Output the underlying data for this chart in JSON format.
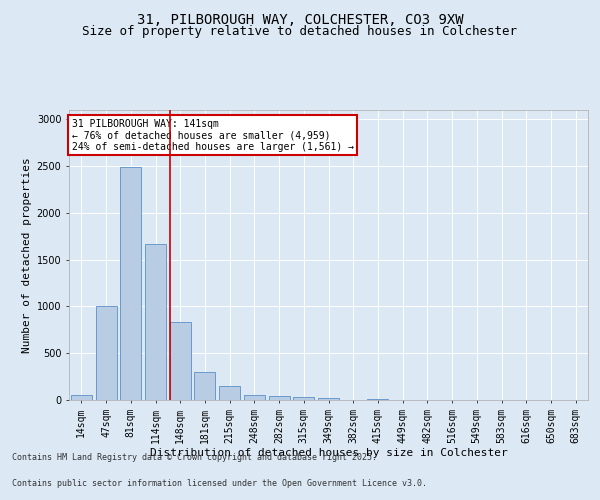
{
  "title_line1": "31, PILBOROUGH WAY, COLCHESTER, CO3 9XW",
  "title_line2": "Size of property relative to detached houses in Colchester",
  "xlabel": "Distribution of detached houses by size in Colchester",
  "ylabel": "Number of detached properties",
  "annotation_line1": "31 PILBOROUGH WAY: 141sqm",
  "annotation_line2": "← 76% of detached houses are smaller (4,959)",
  "annotation_line3": "24% of semi-detached houses are larger (1,561) →",
  "categories": [
    "14sqm",
    "47sqm",
    "81sqm",
    "114sqm",
    "148sqm",
    "181sqm",
    "215sqm",
    "248sqm",
    "282sqm",
    "315sqm",
    "349sqm",
    "382sqm",
    "415sqm",
    "449sqm",
    "482sqm",
    "516sqm",
    "549sqm",
    "583sqm",
    "616sqm",
    "650sqm",
    "683sqm"
  ],
  "values": [
    50,
    1005,
    2490,
    1670,
    830,
    300,
    150,
    55,
    45,
    30,
    20,
    0,
    15,
    0,
    0,
    0,
    0,
    0,
    0,
    0,
    0
  ],
  "bar_color": "#b8cce4",
  "bar_edge_color": "#5b8fc9",
  "vline_color": "#cc0000",
  "vline_position": 3.57,
  "annotation_box_color": "#cc0000",
  "background_color": "#dce9f5",
  "plot_bg_color": "#dce9f5",
  "ylim": [
    0,
    3100
  ],
  "yticks": [
    0,
    500,
    1000,
    1500,
    2000,
    2500,
    3000
  ],
  "footer_line1": "Contains HM Land Registry data © Crown copyright and database right 2025.",
  "footer_line2": "Contains public sector information licensed under the Open Government Licence v3.0.",
  "title_fontsize": 10,
  "subtitle_fontsize": 9,
  "tick_fontsize": 7,
  "ylabel_fontsize": 8,
  "xlabel_fontsize": 8,
  "annotation_fontsize": 7,
  "footer_fontsize": 6
}
